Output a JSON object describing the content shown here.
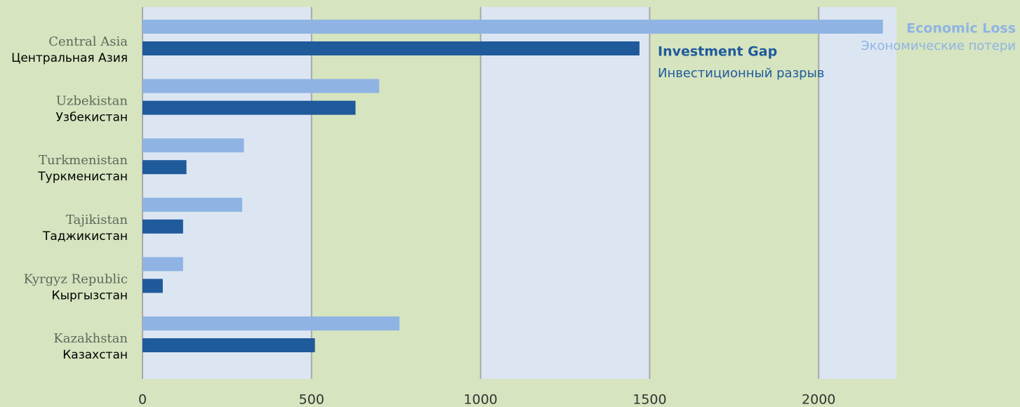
{
  "chart_data": {
    "type": "bar",
    "orientation": "horizontal",
    "categories": [
      "Central Asia",
      "Uzbekistan",
      "Turkmenistan",
      "Tajikistan",
      "Kyrgyz Republic",
      "Kazakhstan"
    ],
    "categories_ru": [
      "Центральная Азия",
      "Узбекистан",
      "Туркменистан",
      "Таджикистан",
      "Кыргызстан",
      "Казахстан"
    ],
    "series": [
      {
        "name": "Economic Loss",
        "name_ru": "Экономические потери",
        "color": "#8fb4e3",
        "values": [
          2190,
          700,
          300,
          295,
          120,
          760
        ]
      },
      {
        "name": "Investment Gap",
        "name_ru": "Инвестиционный разрыв",
        "color": "#1f5a9b",
        "values": [
          1470,
          630,
          130,
          120,
          60,
          510
        ]
      }
    ],
    "xlim": [
      0,
      2230
    ],
    "xticks": [
      0,
      500,
      1000,
      1500,
      2000
    ],
    "grid": true
  }
}
